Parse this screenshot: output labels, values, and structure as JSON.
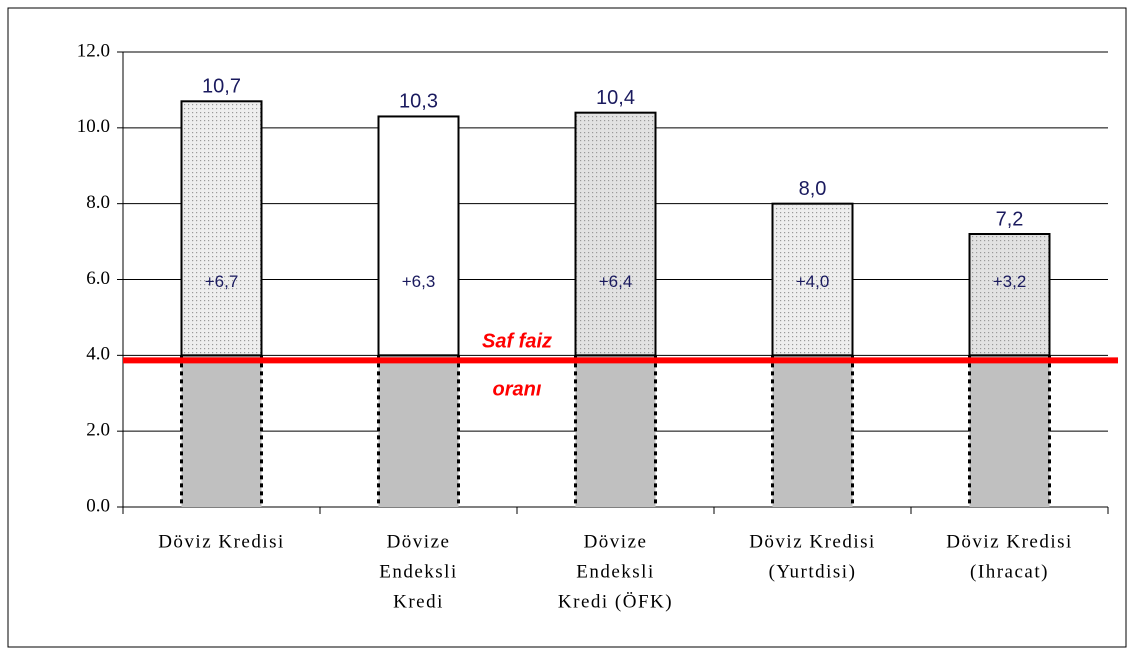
{
  "chart_data": {
    "type": "stacked_bar",
    "categories": [
      [
        "Döviz Kredisi"
      ],
      [
        "Dövize",
        "Endeksli",
        "Kredi"
      ],
      [
        "Dövize",
        "Endeksli",
        "Kredi (ÖFK)"
      ],
      [
        "Döviz Kredisi",
        "(Yurtdisi)"
      ],
      [
        "Döviz Kredisi",
        "(Ihracat)"
      ]
    ],
    "series": [
      {
        "color": "#c0c0c0",
        "values": [
          4.0,
          4.0,
          4.0,
          4.0,
          4.0
        ]
      },
      {
        "colors": [
          "#eeeeee",
          "#ffffff",
          "#e2e2e2",
          "#eeeeee",
          "#e2e2e2"
        ],
        "values": [
          6.7,
          6.3,
          6.4,
          4.0,
          3.2
        ],
        "value_labels": [
          "+6,7",
          "+6,3",
          "+6,4",
          "+4,0",
          "+3,2"
        ]
      }
    ],
    "totals": [
      10.7,
      10.3,
      10.4,
      8.0,
      7.2
    ],
    "total_labels": [
      "10,7",
      "10,3",
      "10,4",
      "8,0",
      "7,2"
    ],
    "reference_line": {
      "value": 4.0,
      "color": "#ff0000",
      "label": [
        "Saf faiz",
        "oranı"
      ]
    },
    "ylim": [
      0,
      12
    ],
    "yticks": [
      {
        "value": 0,
        "label": "0.0"
      },
      {
        "value": 2,
        "label": "2.0"
      },
      {
        "value": 4,
        "label": "4.0"
      },
      {
        "value": 6,
        "label": "6.0"
      },
      {
        "value": 8,
        "label": "8.0"
      },
      {
        "value": 10,
        "label": "10.0"
      },
      {
        "value": 12,
        "label": "12.0"
      }
    ],
    "grid": true
  }
}
